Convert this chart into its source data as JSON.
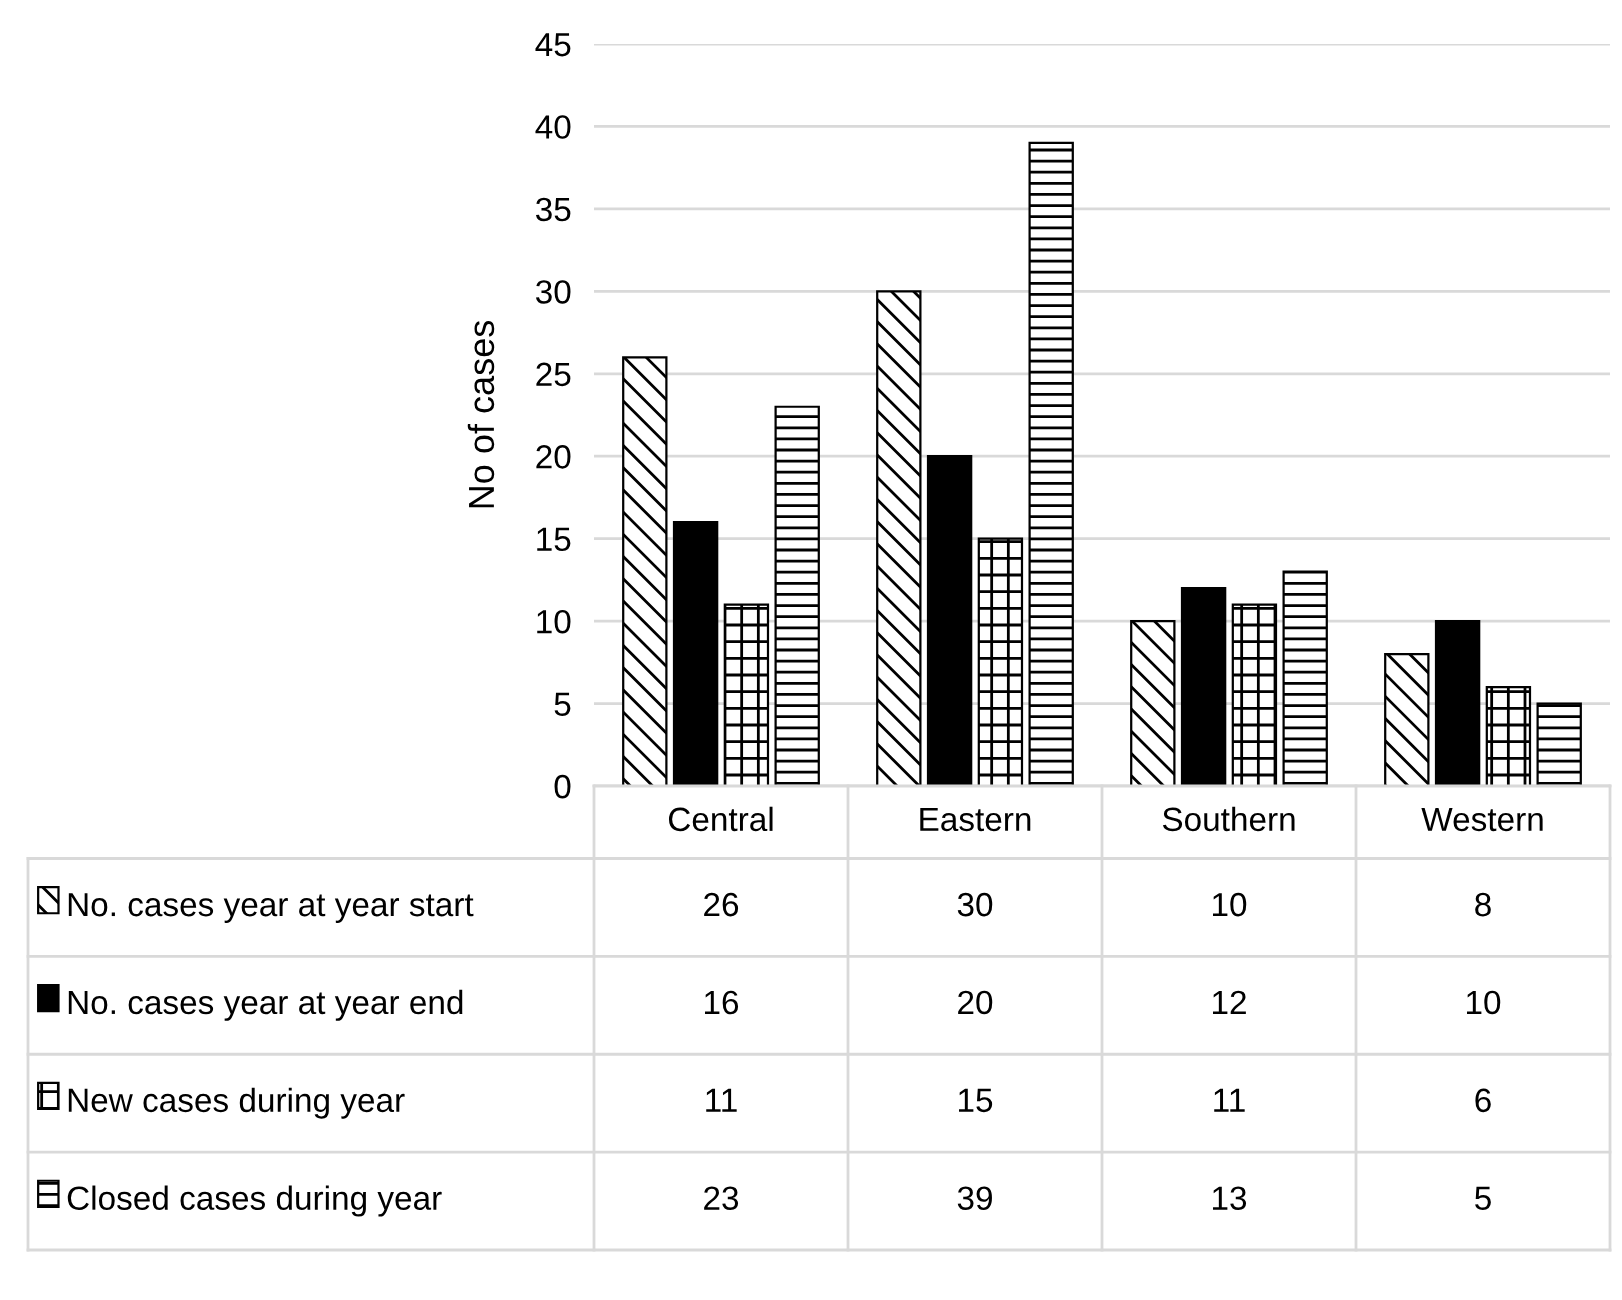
{
  "chart_data": {
    "type": "bar",
    "ylabel": "No of cases",
    "categories": [
      "Central",
      "Eastern",
      "Southern",
      "Western"
    ],
    "series": [
      {
        "name": "No. cases year at year start",
        "color": "#000000",
        "values": [
          26,
          30,
          10,
          8
        ]
      },
      {
        "name": "No. cases year at year end",
        "color": "#000000",
        "values": [
          16,
          20,
          12,
          10
        ]
      },
      {
        "name": "New cases during year",
        "color": "#000000",
        "values": [
          11,
          15,
          11,
          6
        ]
      },
      {
        "name": "Closed cases during year",
        "color": "#000000",
        "values": [
          23,
          39,
          13,
          5
        ]
      }
    ],
    "ylim": [
      0,
      45
    ],
    "yticks": [
      0,
      5,
      10,
      15,
      20,
      25,
      30,
      35,
      40,
      45
    ],
    "grid": "y",
    "legend": "bottom",
    "data_labels": true
  }
}
